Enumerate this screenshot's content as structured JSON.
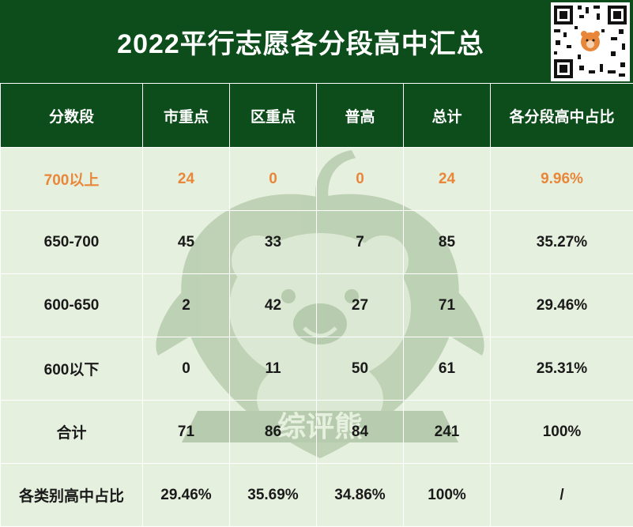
{
  "title": "2022平行志愿各分段高中汇总",
  "watermark_text": "综评熊",
  "colors": {
    "header_bg": "#0d4d1b",
    "body_bg": "#e6f0de",
    "highlight_text": "#e8873a",
    "watermark": "#b7ccae"
  },
  "icons": {
    "qr": "qr-code-icon",
    "mascot": "bear-mascot-icon"
  },
  "table": {
    "headers": [
      "分数段",
      "市重点",
      "区重点",
      "普高",
      "总计",
      "各分段高中占比"
    ],
    "rows": [
      {
        "cells": [
          "700以上",
          "24",
          "0",
          "0",
          "24",
          "9.96%"
        ],
        "highlight": true
      },
      {
        "cells": [
          "650-700",
          "45",
          "33",
          "7",
          "85",
          "35.27%"
        ],
        "highlight": false
      },
      {
        "cells": [
          "600-650",
          "2",
          "42",
          "27",
          "71",
          "29.46%"
        ],
        "highlight": false
      },
      {
        "cells": [
          "600以下",
          "0",
          "11",
          "50",
          "61",
          "25.31%"
        ],
        "highlight": false
      },
      {
        "cells": [
          "合计",
          "71",
          "86",
          "84",
          "241",
          "100%"
        ],
        "highlight": false
      },
      {
        "cells": [
          "各类别高中占比",
          "29.46%",
          "35.69%",
          "34.86%",
          "100%",
          "/"
        ],
        "highlight": false
      }
    ]
  }
}
